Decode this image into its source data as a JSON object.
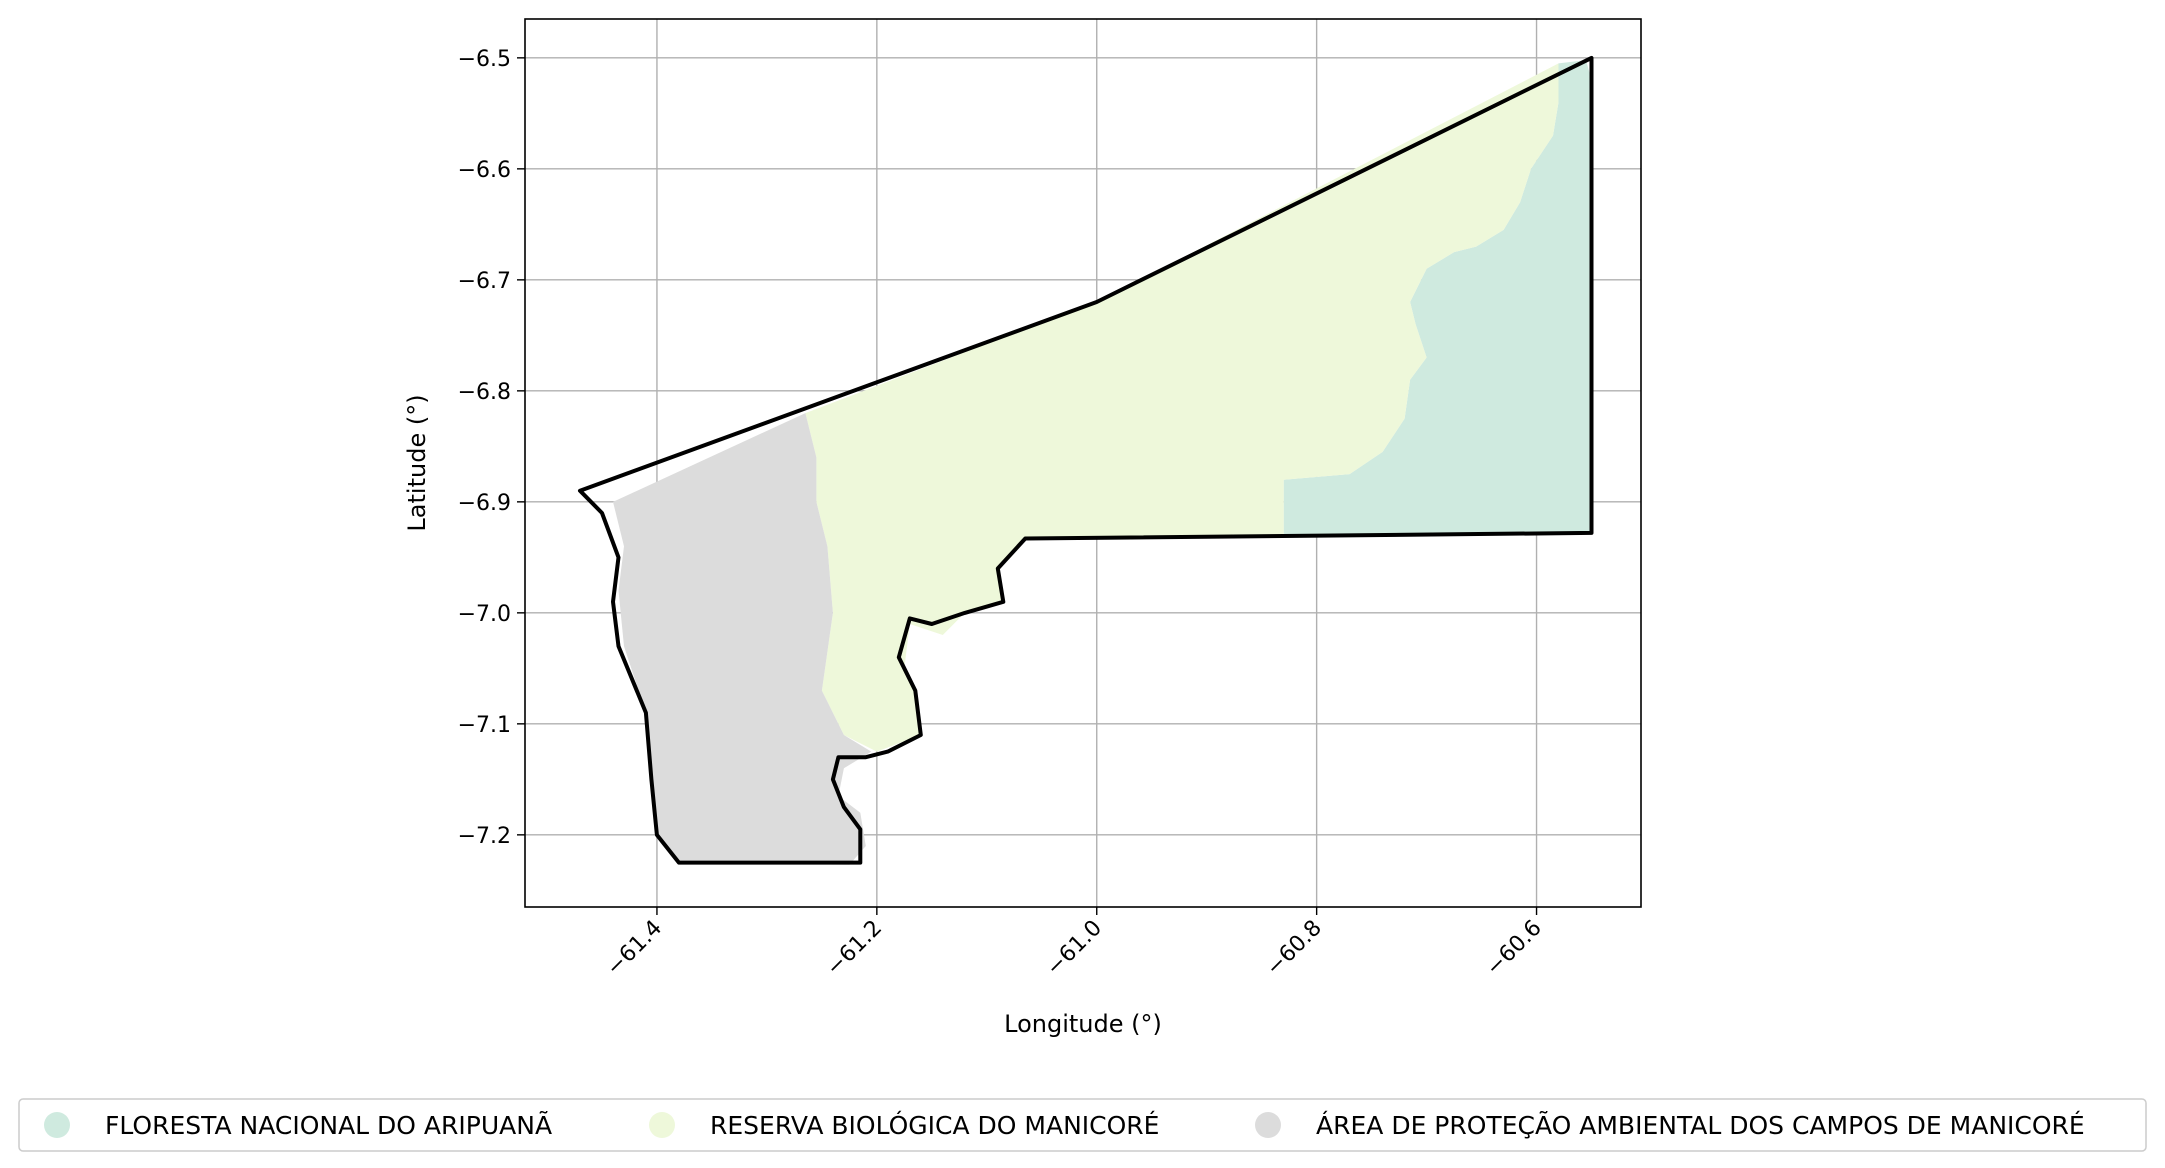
{
  "chart_data": {
    "type": "map",
    "xlabel": "Longitude (°)",
    "ylabel": "Latitude (°)",
    "xlim": [
      -61.52,
      -60.505
    ],
    "ylim": [
      -7.265,
      -6.465
    ],
    "x_ticks": [
      -61.4,
      -61.2,
      -61.0,
      -60.8,
      -60.6
    ],
    "x_tick_labels": [
      "−61.4",
      "−61.2",
      "−61.0",
      "−60.8",
      "−60.6"
    ],
    "y_ticks": [
      -6.5,
      -6.6,
      -6.7,
      -6.8,
      -6.9,
      -7.0,
      -7.1,
      -7.2
    ],
    "y_tick_labels": [
      "−6.5",
      "−6.6",
      "−6.7",
      "−6.8",
      "−6.9",
      "−7.0",
      "−7.1",
      "−7.2"
    ],
    "grid": true,
    "legend_position": "bottom",
    "legend": [
      {
        "label": "FLORESTA NACIONAL DO ARIPUANÃ",
        "color": "#cfeadf"
      },
      {
        "label": "RESERVA BIOLÓGICA DO MANICORÉ",
        "color": "#eef8da"
      },
      {
        "label": "ÁREA DE PROTEÇÃO AMBIENTAL DOS CAMPOS DE MANICORÉ",
        "color": "#dcdcdc"
      }
    ],
    "regions": [
      {
        "name": "FLORESTA NACIONAL DO ARIPUANÃ",
        "color": "#cfeadf",
        "coords": [
          [
            -60.58,
            -6.505
          ],
          [
            -60.555,
            -6.502
          ],
          [
            -60.55,
            -6.52
          ],
          [
            -60.55,
            -6.928
          ],
          [
            -60.83,
            -6.93
          ],
          [
            -60.83,
            -6.88
          ],
          [
            -60.77,
            -6.875
          ],
          [
            -60.74,
            -6.855
          ],
          [
            -60.72,
            -6.825
          ],
          [
            -60.715,
            -6.79
          ],
          [
            -60.7,
            -6.77
          ],
          [
            -60.71,
            -6.74
          ],
          [
            -60.715,
            -6.72
          ],
          [
            -60.7,
            -6.69
          ],
          [
            -60.675,
            -6.675
          ],
          [
            -60.655,
            -6.67
          ],
          [
            -60.63,
            -6.655
          ],
          [
            -60.615,
            -6.63
          ],
          [
            -60.605,
            -6.6
          ],
          [
            -60.585,
            -6.57
          ],
          [
            -60.58,
            -6.54
          ]
        ]
      },
      {
        "name": "RESERVA BIOLÓGICA DO MANICORÉ",
        "color": "#eef8da",
        "coords": [
          [
            -61.265,
            -6.82
          ],
          [
            -61.0,
            -6.72
          ],
          [
            -60.58,
            -6.505
          ],
          [
            -60.58,
            -6.54
          ],
          [
            -60.585,
            -6.57
          ],
          [
            -60.605,
            -6.6
          ],
          [
            -60.615,
            -6.63
          ],
          [
            -60.63,
            -6.655
          ],
          [
            -60.655,
            -6.67
          ],
          [
            -60.675,
            -6.675
          ],
          [
            -60.7,
            -6.69
          ],
          [
            -60.715,
            -6.72
          ],
          [
            -60.71,
            -6.74
          ],
          [
            -60.7,
            -6.77
          ],
          [
            -60.715,
            -6.79
          ],
          [
            -60.72,
            -6.825
          ],
          [
            -60.74,
            -6.855
          ],
          [
            -60.77,
            -6.875
          ],
          [
            -60.83,
            -6.88
          ],
          [
            -60.83,
            -6.93
          ],
          [
            -61.065,
            -6.933
          ],
          [
            -61.09,
            -6.96
          ],
          [
            -61.085,
            -6.99
          ],
          [
            -61.12,
            -7.0
          ],
          [
            -61.14,
            -7.02
          ],
          [
            -61.17,
            -7.01
          ],
          [
            -61.175,
            -7.05
          ],
          [
            -61.165,
            -7.07
          ],
          [
            -61.16,
            -7.11
          ],
          [
            -61.2,
            -7.125
          ],
          [
            -61.23,
            -7.11
          ],
          [
            -61.25,
            -7.07
          ],
          [
            -61.24,
            -7.0
          ],
          [
            -61.245,
            -6.94
          ],
          [
            -61.255,
            -6.9
          ],
          [
            -61.255,
            -6.86
          ]
        ]
      },
      {
        "name": "ÁREA DE PROTEÇÃO AMBIENTAL DOS CAMPOS DE MANICORÉ",
        "color": "#dcdcdc",
        "coords": [
          [
            -61.265,
            -6.82
          ],
          [
            -61.44,
            -6.9
          ],
          [
            -61.43,
            -6.94
          ],
          [
            -61.435,
            -6.98
          ],
          [
            -61.43,
            -7.03
          ],
          [
            -61.41,
            -7.09
          ],
          [
            -61.405,
            -7.15
          ],
          [
            -61.4,
            -7.2
          ],
          [
            -61.38,
            -7.225
          ],
          [
            -61.225,
            -7.227
          ],
          [
            -61.21,
            -7.21
          ],
          [
            -61.215,
            -7.18
          ],
          [
            -61.235,
            -7.165
          ],
          [
            -61.23,
            -7.14
          ],
          [
            -61.205,
            -7.125
          ],
          [
            -61.23,
            -7.11
          ],
          [
            -61.25,
            -7.07
          ],
          [
            -61.24,
            -7.0
          ],
          [
            -61.245,
            -6.94
          ],
          [
            -61.255,
            -6.9
          ],
          [
            -61.255,
            -6.86
          ]
        ]
      }
    ],
    "boundary": {
      "name": "boundary",
      "color": "#000000",
      "coords": [
        [
          -61.47,
          -6.89
        ],
        [
          -61.0,
          -6.72
        ],
        [
          -60.55,
          -6.5
        ],
        [
          -60.55,
          -6.928
        ],
        [
          -61.065,
          -6.933
        ],
        [
          -61.09,
          -6.96
        ],
        [
          -61.085,
          -6.99
        ],
        [
          -61.12,
          -7.0
        ],
        [
          -61.15,
          -7.01
        ],
        [
          -61.17,
          -7.005
        ],
        [
          -61.18,
          -7.04
        ],
        [
          -61.165,
          -7.07
        ],
        [
          -61.16,
          -7.11
        ],
        [
          -61.19,
          -7.125
        ],
        [
          -61.21,
          -7.13
        ],
        [
          -61.235,
          -7.13
        ],
        [
          -61.24,
          -7.15
        ],
        [
          -61.23,
          -7.175
        ],
        [
          -61.215,
          -7.195
        ],
        [
          -61.215,
          -7.225
        ],
        [
          -61.38,
          -7.225
        ],
        [
          -61.4,
          -7.2
        ],
        [
          -61.405,
          -7.15
        ],
        [
          -61.41,
          -7.09
        ],
        [
          -61.435,
          -7.03
        ],
        [
          -61.44,
          -6.99
        ],
        [
          -61.435,
          -6.95
        ],
        [
          -61.45,
          -6.91
        ]
      ]
    }
  }
}
